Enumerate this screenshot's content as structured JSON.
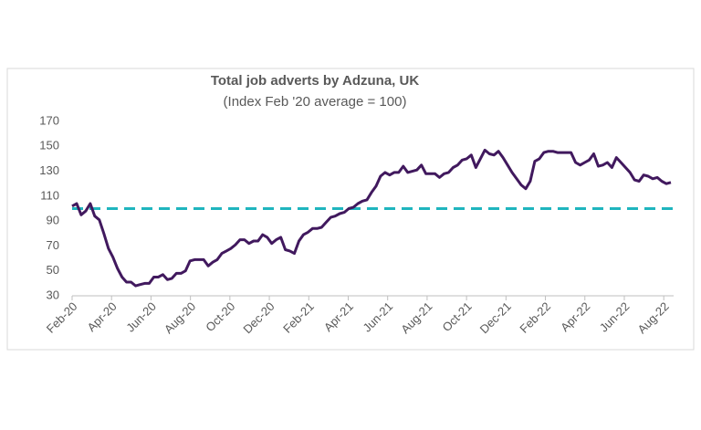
{
  "chart_data": {
    "type": "line",
    "title": "Total job adverts by Adzuna, UK",
    "subtitle": "(Index Feb '20 average = 100)",
    "x": [
      0,
      0.23,
      0.46,
      0.69,
      0.92,
      1.15,
      1.38,
      1.61,
      1.84,
      2.07,
      2.3,
      2.53,
      2.76,
      2.99,
      3.22,
      3.45,
      3.68,
      3.91,
      4.14,
      4.37,
      4.6,
      4.83,
      5.06,
      5.29,
      5.52,
      5.75,
      5.98,
      6.21,
      6.44,
      6.67,
      6.9,
      7.13,
      7.36,
      7.59,
      7.82,
      8.05,
      8.28,
      8.51,
      8.74,
      8.97,
      9.2,
      9.43,
      9.66,
      9.89,
      10.12,
      10.35,
      10.58,
      10.81,
      11.04,
      11.27,
      11.5,
      11.73,
      11.96,
      12.19,
      12.42,
      12.65,
      12.88,
      13.11,
      13.34,
      13.57,
      13.8,
      14.03,
      14.26,
      14.49,
      14.72,
      14.95,
      15.18,
      15.41,
      15.64,
      15.87,
      16.1,
      16.33,
      16.56,
      16.79,
      17.02,
      17.25,
      17.48,
      17.71,
      17.94,
      18.17,
      18.4,
      18.63,
      18.86,
      19.09,
      19.32,
      19.55,
      19.78,
      20.01,
      20.24,
      20.47,
      20.7,
      20.93,
      21.16,
      21.39,
      21.62,
      21.85,
      22.08,
      22.31,
      22.54,
      22.77,
      23,
      23.23,
      23.46,
      23.69,
      23.92,
      24.15,
      24.38,
      24.61,
      24.84,
      25.07,
      25.3,
      25.53,
      25.76,
      25.99,
      26.22,
      26.45,
      26.68,
      26.91,
      27.14,
      27.37,
      27.6,
      27.83,
      28.06,
      28.29,
      28.52,
      28.75,
      28.98,
      29.21,
      29.44,
      29.67,
      29.9,
      30.13,
      30.36
    ],
    "series": [
      {
        "color": "#41195e",
        "values": [
          102,
          104,
          95,
          98,
          104,
          94,
          91,
          80,
          68,
          61,
          52,
          45,
          41,
          41,
          38,
          39,
          40,
          40,
          45,
          45,
          47,
          43,
          44,
          48,
          48,
          50,
          58,
          59,
          59,
          59,
          54,
          57,
          59,
          64,
          66,
          68,
          71,
          75,
          75,
          72,
          74,
          74,
          79,
          77,
          72,
          75,
          77,
          67,
          66,
          64,
          74,
          79,
          81,
          84,
          84,
          85,
          89,
          93,
          94,
          96,
          97,
          100,
          101,
          104,
          106,
          107,
          113,
          118,
          126,
          129,
          127,
          129,
          129,
          134,
          129,
          130,
          131,
          135,
          128,
          128,
          128,
          125,
          128,
          129,
          133,
          135,
          139,
          140,
          143,
          133,
          140,
          147,
          144,
          143,
          146,
          141,
          135,
          129,
          124,
          119,
          116,
          122,
          138,
          140,
          145,
          146,
          146,
          145,
          145,
          145,
          145,
          137,
          135,
          137,
          139,
          144,
          134,
          135,
          137,
          133,
          141,
          137,
          133,
          129,
          123,
          122,
          127,
          126,
          124,
          125,
          122,
          120,
          121
        ]
      }
    ],
    "reference": 100,
    "reference_color": "#1fb5be",
    "xlim": [
      0,
      30.5
    ],
    "xticks": [
      {
        "value": 0,
        "label": "Feb-20"
      },
      {
        "value": 2,
        "label": "Apr-20"
      },
      {
        "value": 4,
        "label": "Jun-20"
      },
      {
        "value": 6,
        "label": "Aug-20"
      },
      {
        "value": 8,
        "label": "Oct-20"
      },
      {
        "value": 10,
        "label": "Dec-20"
      },
      {
        "value": 12,
        "label": "Feb-21"
      },
      {
        "value": 14,
        "label": "Apr-21"
      },
      {
        "value": 16,
        "label": "Jun-21"
      },
      {
        "value": 18,
        "label": "Aug-21"
      },
      {
        "value": 20,
        "label": "Oct-21"
      },
      {
        "value": 22,
        "label": "Dec-21"
      },
      {
        "value": 24,
        "label": "Feb-22"
      },
      {
        "value": 26,
        "label": "Apr-22"
      },
      {
        "value": 28,
        "label": "Jun-22"
      },
      {
        "value": 30,
        "label": "Aug-22"
      }
    ],
    "ylim": [
      30,
      170
    ],
    "yticks": [
      30,
      50,
      70,
      90,
      110,
      130,
      150,
      170
    ],
    "grid": false
  }
}
